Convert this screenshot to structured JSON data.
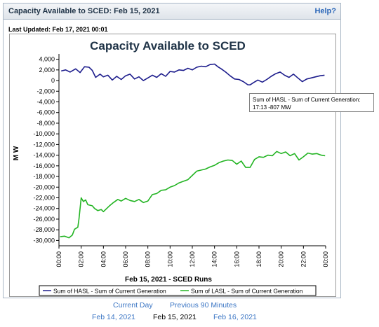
{
  "panel": {
    "title": "Capacity Available to SCED: Feb 15, 2021",
    "help_label": "Help?",
    "last_updated": "Last Updated: Feb 17, 2021 00:01"
  },
  "tooltip": {
    "line1": "Sum of HASL - Sum of Current Generation:",
    "line2": "17:13  -807 MW"
  },
  "nav": {
    "current_day": "Current Day",
    "previous_90": "Previous 90 Minutes",
    "prev_date": "Feb 14, 2021",
    "this_date": "Feb 15, 2021",
    "next_date": "Feb 16, 2021"
  },
  "colors": {
    "hasl_line": "#1c1c8c",
    "lasl_line": "#22b422",
    "title": "#1f3347"
  },
  "chart_data": {
    "type": "line",
    "title": "Capacity Available to SCED",
    "xlabel": "Feb 15, 2021 - SCED Runs",
    "ylabel": "M W",
    "xlim": [
      0,
      24
    ],
    "ylim": [
      -31000,
      5000
    ],
    "yticks": [
      4000,
      2000,
      0,
      -2000,
      -4000,
      -6000,
      -8000,
      -10000,
      -12000,
      -14000,
      -16000,
      -18000,
      -20000,
      -22000,
      -24000,
      -26000,
      -28000,
      -30000
    ],
    "ytick_labels": [
      "4,000",
      "2,000",
      "0",
      "-2,000",
      "-4,000",
      "-6,000",
      "-8,000",
      "-10,000",
      "-12,000",
      "-14,000",
      "-16,000",
      "-18,000",
      "-20,000",
      "-22,000",
      "-24,000",
      "-26,000",
      "-28,000",
      "-30,000"
    ],
    "xticks": [
      0,
      2,
      4,
      6,
      8,
      10,
      12,
      14,
      16,
      18,
      20,
      22,
      24
    ],
    "xtick_labels": [
      "00:00",
      "02:00",
      "04:00",
      "06:00",
      "08:00",
      "10:00",
      "12:00",
      "14:00",
      "16:00",
      "18:00",
      "20:00",
      "22:00",
      "00:00"
    ],
    "grid": false,
    "legend_position": "bottom",
    "series": [
      {
        "name": "Sum of HASL - Sum of Current Generation",
        "x": [
          0.2,
          0.6,
          1.0,
          1.5,
          1.9,
          2.3,
          2.7,
          3.0,
          3.3,
          3.7,
          4.0,
          4.4,
          4.8,
          5.2,
          5.6,
          6.0,
          6.4,
          6.8,
          7.2,
          7.6,
          8.0,
          8.4,
          8.8,
          9.2,
          9.6,
          10.0,
          10.4,
          10.8,
          11.2,
          11.6,
          12.0,
          12.4,
          12.8,
          13.2,
          13.6,
          14.0,
          14.3,
          14.6,
          15.0,
          15.4,
          15.8,
          16.2,
          16.6,
          17.0,
          17.2,
          17.5,
          17.9,
          18.3,
          18.7,
          19.1,
          19.5,
          19.9,
          20.3,
          20.7,
          21.1,
          21.5,
          21.9,
          22.3,
          22.7,
          23.1,
          23.5,
          23.9
        ],
        "y": [
          1800,
          2000,
          1600,
          2200,
          1500,
          2600,
          2500,
          1900,
          600,
          1200,
          700,
          1000,
          100,
          800,
          200,
          900,
          1200,
          300,
          700,
          0,
          500,
          1000,
          600,
          1300,
          800,
          1700,
          1600,
          2000,
          1900,
          2300,
          2000,
          2500,
          2700,
          2600,
          3000,
          3100,
          2600,
          2200,
          1600,
          900,
          300,
          200,
          -200,
          -800,
          -807,
          -400,
          100,
          -300,
          200,
          800,
          1300,
          1600,
          1000,
          600,
          1200,
          500,
          -200,
          300,
          500,
          700,
          900,
          1000
        ]
      },
      {
        "name": "Sum of LASL - Sum of Current Generation",
        "x": [
          0.1,
          0.5,
          0.9,
          1.2,
          1.4,
          1.7,
          1.8,
          2.0,
          2.2,
          2.4,
          2.6,
          3.0,
          3.2,
          3.5,
          3.8,
          4.0,
          4.3,
          4.6,
          4.9,
          5.3,
          5.6,
          6.0,
          6.4,
          6.8,
          7.2,
          7.6,
          8.0,
          8.4,
          8.8,
          9.2,
          9.6,
          10.0,
          10.4,
          10.8,
          11.2,
          11.6,
          12.0,
          12.4,
          12.8,
          13.2,
          13.6,
          14.0,
          14.4,
          14.8,
          15.2,
          15.6,
          16.0,
          16.4,
          16.8,
          17.2,
          17.6,
          18.0,
          18.4,
          18.8,
          19.2,
          19.6,
          20.0,
          20.4,
          20.8,
          21.2,
          21.6,
          22.0,
          22.4,
          22.8,
          23.2,
          23.6,
          23.95
        ],
        "y": [
          -29300,
          -29200,
          -29500,
          -29000,
          -27900,
          -27500,
          -26000,
          -22000,
          -22700,
          -22400,
          -23300,
          -23500,
          -24000,
          -24400,
          -24200,
          -24600,
          -24000,
          -23400,
          -22900,
          -22300,
          -22600,
          -22100,
          -22500,
          -22700,
          -22300,
          -22900,
          -22600,
          -21400,
          -21200,
          -20600,
          -20500,
          -20000,
          -19700,
          -19200,
          -18900,
          -18600,
          -17800,
          -17000,
          -16800,
          -16600,
          -16200,
          -15900,
          -15400,
          -15100,
          -14900,
          -15000,
          -15700,
          -15100,
          -16300,
          -16300,
          -14800,
          -14300,
          -14400,
          -14000,
          -14100,
          -13300,
          -13700,
          -13400,
          -14100,
          -13700,
          -14900,
          -14300,
          -13600,
          -13800,
          -13700,
          -14000,
          -14100
        ]
      }
    ],
    "annotation": "Sum of HASL - Sum of Current Generation: 17:13  -807 MW"
  }
}
